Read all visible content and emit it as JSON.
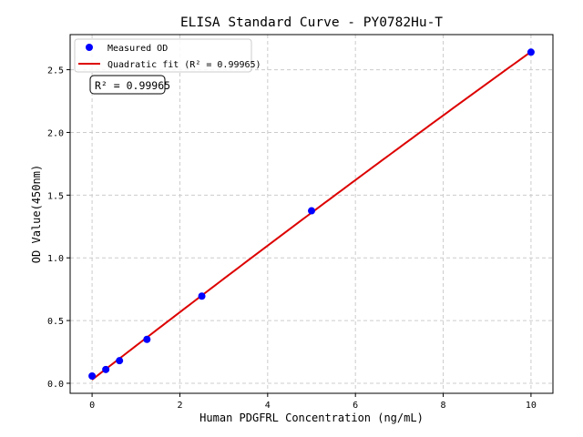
{
  "chart_data": {
    "type": "scatter",
    "title": "ELISA Standard Curve - PY0782Hu-T",
    "xlabel": "Human PDGFRL Concentration (ng/mL)",
    "ylabel": "OD Value(450nm)",
    "xlim": [
      -0.5,
      10.5
    ],
    "ylim": [
      -0.08,
      2.78
    ],
    "xticks": [
      0,
      2,
      4,
      6,
      8,
      10
    ],
    "yticks": [
      0.0,
      0.5,
      1.0,
      1.5,
      2.0,
      2.5
    ],
    "xtick_labels": [
      "0",
      "2",
      "4",
      "6",
      "8",
      "10"
    ],
    "ytick_labels": [
      "0.0",
      "0.5",
      "1.0",
      "1.5",
      "2.0",
      "2.5"
    ],
    "grid": true,
    "legend_position": "top-left",
    "series": [
      {
        "name": "Measured OD",
        "kind": "scatter",
        "color": "#0000ff",
        "x": [
          0,
          0.3125,
          0.625,
          1.25,
          2.5,
          5,
          10
        ],
        "y": [
          0.058,
          0.11,
          0.18,
          0.35,
          0.695,
          1.375,
          2.64
        ]
      },
      {
        "name": "Quadratic fit (R² = 0.99965)",
        "kind": "line",
        "color": "#dd0000",
        "fit": "quadratic"
      }
    ],
    "annotation": "R² = 0.99965"
  }
}
